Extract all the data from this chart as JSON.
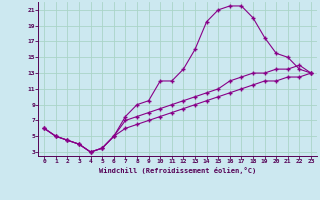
{
  "xlabel": "Windchill (Refroidissement éolien,°C)",
  "bg_color": "#cce8f0",
  "grid_color": "#aad4c8",
  "line_color": "#880088",
  "xlim": [
    -0.5,
    23.5
  ],
  "ylim": [
    2.5,
    22
  ],
  "xticks": [
    0,
    1,
    2,
    3,
    4,
    5,
    6,
    7,
    8,
    9,
    10,
    11,
    12,
    13,
    14,
    15,
    16,
    17,
    18,
    19,
    20,
    21,
    22,
    23
  ],
  "yticks": [
    3,
    5,
    7,
    9,
    11,
    13,
    15,
    17,
    19,
    21
  ],
  "line1_x": [
    0,
    1,
    2,
    3,
    4,
    5,
    6,
    7,
    8,
    9,
    10,
    11,
    12,
    13,
    14,
    15,
    16,
    17,
    18,
    19,
    20,
    21,
    22,
    23
  ],
  "line1_y": [
    6,
    5,
    4.5,
    4,
    3,
    3.5,
    5,
    7.5,
    9,
    9.5,
    12,
    12,
    13.5,
    16,
    19.5,
    21,
    21.5,
    21.5,
    20,
    17.5,
    15.5,
    15,
    13.5,
    13
  ],
  "line2_x": [
    0,
    1,
    2,
    3,
    4,
    5,
    6,
    7,
    8,
    9,
    10,
    11,
    12,
    13,
    14,
    15,
    16,
    17,
    18,
    19,
    20,
    21,
    22,
    23
  ],
  "line2_y": [
    6,
    5,
    4.5,
    4,
    3,
    3.5,
    5,
    7,
    7.5,
    8,
    8.5,
    9,
    9.5,
    10,
    10.5,
    11,
    12,
    12.5,
    13,
    13,
    13.5,
    13.5,
    14,
    13
  ],
  "line3_x": [
    0,
    1,
    2,
    3,
    4,
    5,
    6,
    7,
    8,
    9,
    10,
    11,
    12,
    13,
    14,
    15,
    16,
    17,
    18,
    19,
    20,
    21,
    22,
    23
  ],
  "line3_y": [
    6,
    5,
    4.5,
    4,
    3,
    3.5,
    5,
    6,
    6.5,
    7,
    7.5,
    8,
    8.5,
    9,
    9.5,
    10,
    10.5,
    11,
    11.5,
    12,
    12,
    12.5,
    12.5,
    13
  ]
}
